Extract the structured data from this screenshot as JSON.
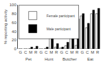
{
  "chart_data": {
    "type": "bar",
    "ylabel": "% reporting activity",
    "groups": [
      "Pet",
      "Hunt",
      "Butcher",
      "Eat"
    ],
    "categories": [
      "G",
      "C",
      "M",
      "R",
      "G",
      "C",
      "M",
      "R",
      "G",
      "C",
      "M",
      "R",
      "G",
      "C",
      "M",
      "R"
    ],
    "series": [
      {
        "name": "Female participant",
        "color": "white",
        "values": [
          0,
          0,
          1,
          1,
          0,
          1,
          28,
          4,
          2,
          7,
          62,
          8,
          75,
          48,
          80,
          80
        ]
      },
      {
        "name": "Male participant",
        "color": "black",
        "values": [
          0,
          0,
          4,
          6,
          0,
          4,
          52,
          12,
          4,
          15,
          58,
          68,
          80,
          58,
          88,
          92
        ]
      }
    ],
    "ylim": [
      0,
      100
    ],
    "yticks": [
      0,
      20,
      40,
      60,
      80,
      100
    ],
    "grid": false,
    "legend": "upper left"
  }
}
